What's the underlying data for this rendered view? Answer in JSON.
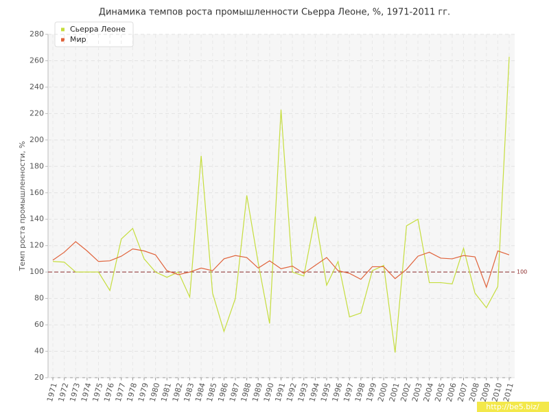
{
  "chart_data": {
    "type": "line",
    "title": "Динамика темпов роста промышленности Сьерра Леоне, %, 1971-2011 гг.",
    "y_label": "Темп роста промышленности, %",
    "categories": [
      "1971",
      "1972",
      "1973",
      "1974",
      "1975",
      "1976",
      "1977",
      "1978",
      "1979",
      "1980",
      "1981",
      "1982",
      "1983",
      "1984",
      "1985",
      "1986",
      "1987",
      "1988",
      "1989",
      "1990",
      "1991",
      "1992",
      "1993",
      "1994",
      "1995",
      "1996",
      "1997",
      "1998",
      "1999",
      "2000",
      "2001",
      "2002",
      "2003",
      "2004",
      "2005",
      "2006",
      "2007",
      "2008",
      "2009",
      "2010",
      "2011"
    ],
    "series": [
      {
        "name": "Сьерра Леоне",
        "color": "#c5dd3c",
        "values": [
          108,
          107.5,
          100,
          100,
          100,
          86,
          125,
          133,
          110,
          100,
          96,
          100,
          81,
          188,
          84,
          55,
          80,
          158,
          107,
          61,
          223,
          100,
          97,
          142,
          90,
          108,
          66,
          69,
          101,
          105,
          39,
          135,
          140,
          92,
          92,
          91,
          118,
          84,
          73,
          89,
          263
        ]
      },
      {
        "name": "Мир",
        "color": "#e0623a",
        "values": [
          109,
          115,
          123,
          116,
          108,
          108.5,
          112,
          117.5,
          116,
          113,
          101,
          98,
          100,
          103,
          101,
          110,
          112.5,
          111,
          103,
          108.5,
          102.5,
          104.5,
          99,
          105,
          111,
          101,
          99,
          94.5,
          104,
          104,
          95,
          102,
          112,
          115,
          110.5,
          110,
          112.5,
          111.5,
          88.5,
          116,
          113
        ]
      }
    ],
    "ylim": [
      20,
      280
    ],
    "yticks": [
      20,
      40,
      60,
      80,
      100,
      120,
      140,
      160,
      180,
      200,
      220,
      240,
      260,
      280
    ],
    "grid": true,
    "reference_line": 100,
    "reference_color": "#8b2b2b",
    "legend": "top-left",
    "watermark": "http://be5.biz/"
  }
}
